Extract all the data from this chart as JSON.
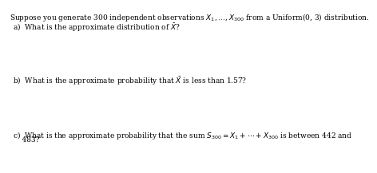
{
  "title": "Suppose you generate 300 independent observations $X_1, \\ldots, X_{300}$ from a Uniform(0, 3) distribution.",
  "part_a": "a)  What is the approximate distribution of $\\bar{X}$?",
  "part_b": "b)  What is the approximate probability that $\\bar{X}$ is less than 1.57?",
  "part_c_line1": "c)  What is the approximate probability that the sum $S_{300} = X_1 + \\cdots + X_{300}$ is between 442 and",
  "part_c_line2": "    483?",
  "bg_color": "#ffffff",
  "text_color": "#000000",
  "font_size": 6.5
}
